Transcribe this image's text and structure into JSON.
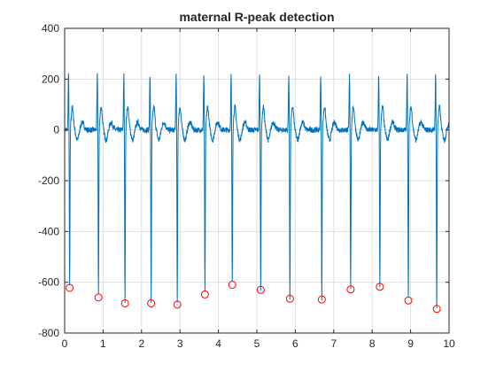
{
  "chart_data": {
    "type": "line",
    "title": "maternal R-peak detection",
    "xlabel": "",
    "ylabel": "",
    "xlim": [
      0,
      10
    ],
    "ylim": [
      -800,
      400
    ],
    "x_ticks": [
      0,
      1,
      2,
      3,
      4,
      5,
      6,
      7,
      8,
      9,
      10
    ],
    "y_ticks": [
      -800,
      -600,
      -400,
      -200,
      0,
      200,
      400
    ],
    "grid": true,
    "legend": "none",
    "colors": {
      "signal": "#0072BD",
      "peaks": "#FF0000",
      "grid": "#DFDFDF",
      "axes": "#262626"
    },
    "series": [
      {
        "kind": "line",
        "description_points": "ECG signal: baseline near 0 with positive spikes near 200 and deep negative R-peaks at the detected times",
        "spike_positive_peak": 200,
        "sample_rate_note": "dense signal"
      },
      {
        "kind": "scatter",
        "marker": "circle",
        "x": [
          0.13,
          0.88,
          1.57,
          2.25,
          2.93,
          3.65,
          4.36,
          5.1,
          5.86,
          6.69,
          7.44,
          8.2,
          8.94,
          9.68
        ],
        "y": [
          -622,
          -660,
          -683,
          -683,
          -688,
          -648,
          -610,
          -630,
          -665,
          -668,
          -628,
          -618,
          -672,
          -705
        ]
      }
    ]
  }
}
